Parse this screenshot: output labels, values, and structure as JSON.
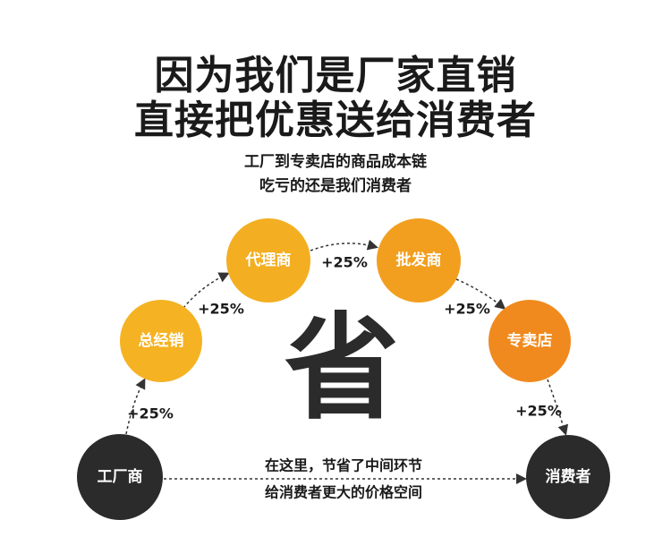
{
  "title": {
    "line1": "因为我们是厂家直销",
    "line2": "直接把优惠送给消费者"
  },
  "subtitle": {
    "line1": "工厂到专卖店的商品成本链",
    "line2": "吃亏的还是我们消费者"
  },
  "nodes": [
    {
      "label": "工厂商",
      "color": "#2b2b2b"
    },
    {
      "label": "总经销",
      "color": "#f5b223"
    },
    {
      "label": "代理商",
      "color": "#f3ae22"
    },
    {
      "label": "批发商",
      "color": "#f29f1f"
    },
    {
      "label": "专卖店",
      "color": "#f08a1e"
    },
    {
      "label": "消费者",
      "color": "#2b2b2b"
    }
  ],
  "markups": [
    "+25%",
    "+25%",
    "+25%",
    "+25%",
    "+25%"
  ],
  "center_char": "省",
  "middle_text": {
    "line1": "在这里，节省了中间环节",
    "line2": "给消费者更大的价格空间"
  }
}
